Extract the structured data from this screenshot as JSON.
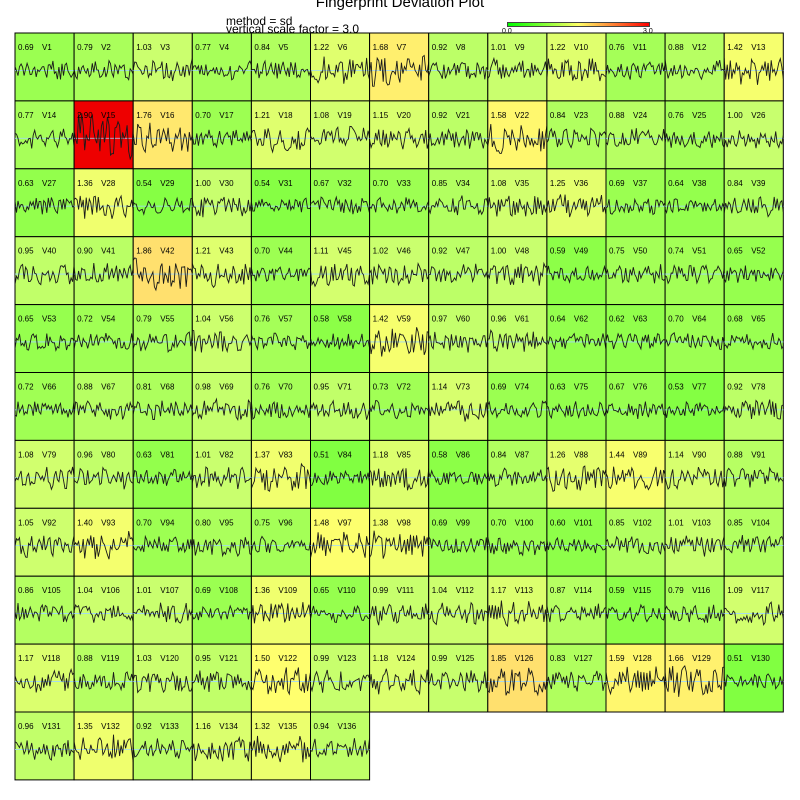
{
  "chart_data": {
    "type": "line",
    "title": "Fingerprint Deviation Plot",
    "method_label": "method = sd",
    "scale_label": "vertical scale factor = 3.0",
    "legend": {
      "min_label": "0.0",
      "max_label": "3.0",
      "range": [
        0,
        3
      ],
      "colors": [
        "#00ff00",
        "#ffff66",
        "#ff0000"
      ]
    },
    "columns": 13,
    "panels": [
      {
        "name": "V1",
        "value": 0.69
      },
      {
        "name": "V2",
        "value": 0.79
      },
      {
        "name": "V3",
        "value": 1.03
      },
      {
        "name": "V4",
        "value": 0.77
      },
      {
        "name": "V5",
        "value": 0.84
      },
      {
        "name": "V6",
        "value": 1.22
      },
      {
        "name": "V7",
        "value": 1.68
      },
      {
        "name": "V8",
        "value": 0.92
      },
      {
        "name": "V9",
        "value": 1.01
      },
      {
        "name": "V10",
        "value": 1.22
      },
      {
        "name": "V11",
        "value": 0.76
      },
      {
        "name": "V12",
        "value": 0.88
      },
      {
        "name": "V13",
        "value": 1.42
      },
      {
        "name": "V14",
        "value": 0.77
      },
      {
        "name": "V15",
        "value": 2.9
      },
      {
        "name": "V16",
        "value": 1.76
      },
      {
        "name": "V17",
        "value": 0.7
      },
      {
        "name": "V18",
        "value": 1.21
      },
      {
        "name": "V19",
        "value": 1.08
      },
      {
        "name": "V20",
        "value": 1.15
      },
      {
        "name": "V21",
        "value": 0.92
      },
      {
        "name": "V22",
        "value": 1.58
      },
      {
        "name": "V23",
        "value": 0.84
      },
      {
        "name": "V24",
        "value": 0.88
      },
      {
        "name": "V25",
        "value": 0.76
      },
      {
        "name": "V26",
        "value": 1.0
      },
      {
        "name": "V27",
        "value": 0.63
      },
      {
        "name": "V28",
        "value": 1.36
      },
      {
        "name": "V29",
        "value": 0.54
      },
      {
        "name": "V30",
        "value": 1.0
      },
      {
        "name": "V31",
        "value": 0.54
      },
      {
        "name": "V32",
        "value": 0.67
      },
      {
        "name": "V33",
        "value": 0.7
      },
      {
        "name": "V34",
        "value": 0.85
      },
      {
        "name": "V35",
        "value": 1.08
      },
      {
        "name": "V36",
        "value": 1.25
      },
      {
        "name": "V37",
        "value": 0.69
      },
      {
        "name": "V38",
        "value": 0.64
      },
      {
        "name": "V39",
        "value": 0.84
      },
      {
        "name": "V40",
        "value": 0.95
      },
      {
        "name": "V41",
        "value": 0.9
      },
      {
        "name": "V42",
        "value": 1.86
      },
      {
        "name": "V43",
        "value": 1.21
      },
      {
        "name": "V44",
        "value": 0.7
      },
      {
        "name": "V45",
        "value": 1.11
      },
      {
        "name": "V46",
        "value": 1.02
      },
      {
        "name": "V47",
        "value": 0.92
      },
      {
        "name": "V48",
        "value": 1.0
      },
      {
        "name": "V49",
        "value": 0.59
      },
      {
        "name": "V50",
        "value": 0.75
      },
      {
        "name": "V51",
        "value": 0.74
      },
      {
        "name": "V52",
        "value": 0.65
      },
      {
        "name": "V53",
        "value": 0.65
      },
      {
        "name": "V54",
        "value": 0.72
      },
      {
        "name": "V55",
        "value": 0.79
      },
      {
        "name": "V56",
        "value": 1.04
      },
      {
        "name": "V57",
        "value": 0.76
      },
      {
        "name": "V58",
        "value": 0.58
      },
      {
        "name": "V59",
        "value": 1.42
      },
      {
        "name": "V60",
        "value": 0.97
      },
      {
        "name": "V61",
        "value": 0.96
      },
      {
        "name": "V62",
        "value": 0.64
      },
      {
        "name": "V63",
        "value": 0.62
      },
      {
        "name": "V64",
        "value": 0.7
      },
      {
        "name": "V65",
        "value": 0.68
      },
      {
        "name": "V66",
        "value": 0.72
      },
      {
        "name": "V67",
        "value": 0.88
      },
      {
        "name": "V68",
        "value": 0.81
      },
      {
        "name": "V69",
        "value": 0.98
      },
      {
        "name": "V70",
        "value": 0.76
      },
      {
        "name": "V71",
        "value": 0.95
      },
      {
        "name": "V72",
        "value": 0.73
      },
      {
        "name": "V73",
        "value": 1.14
      },
      {
        "name": "V74",
        "value": 0.69
      },
      {
        "name": "V75",
        "value": 0.63
      },
      {
        "name": "V76",
        "value": 0.67
      },
      {
        "name": "V77",
        "value": 0.53
      },
      {
        "name": "V78",
        "value": 0.92
      },
      {
        "name": "V79",
        "value": 1.08
      },
      {
        "name": "V80",
        "value": 0.96
      },
      {
        "name": "V81",
        "value": 0.63
      },
      {
        "name": "V82",
        "value": 1.01
      },
      {
        "name": "V83",
        "value": 1.37
      },
      {
        "name": "V84",
        "value": 0.51
      },
      {
        "name": "V85",
        "value": 1.18
      },
      {
        "name": "V86",
        "value": 0.58
      },
      {
        "name": "V87",
        "value": 0.84
      },
      {
        "name": "V88",
        "value": 1.26
      },
      {
        "name": "V89",
        "value": 1.44
      },
      {
        "name": "V90",
        "value": 1.14
      },
      {
        "name": "V91",
        "value": 0.88
      },
      {
        "name": "V92",
        "value": 1.05
      },
      {
        "name": "V93",
        "value": 1.4
      },
      {
        "name": "V94",
        "value": 0.7
      },
      {
        "name": "V95",
        "value": 0.8
      },
      {
        "name": "V96",
        "value": 0.75
      },
      {
        "name": "V97",
        "value": 1.48
      },
      {
        "name": "V98",
        "value": 1.38
      },
      {
        "name": "V99",
        "value": 0.69
      },
      {
        "name": "V100",
        "value": 0.7
      },
      {
        "name": "V101",
        "value": 0.6
      },
      {
        "name": "V102",
        "value": 0.85
      },
      {
        "name": "V103",
        "value": 1.01
      },
      {
        "name": "V104",
        "value": 0.85
      },
      {
        "name": "V105",
        "value": 0.86
      },
      {
        "name": "V106",
        "value": 1.04
      },
      {
        "name": "V107",
        "value": 1.01
      },
      {
        "name": "V108",
        "value": 0.69
      },
      {
        "name": "V109",
        "value": 1.36
      },
      {
        "name": "V110",
        "value": 0.65
      },
      {
        "name": "V111",
        "value": 0.99
      },
      {
        "name": "V112",
        "value": 1.04
      },
      {
        "name": "V113",
        "value": 1.17
      },
      {
        "name": "V114",
        "value": 0.87
      },
      {
        "name": "V115",
        "value": 0.59
      },
      {
        "name": "V116",
        "value": 0.79
      },
      {
        "name": "V117",
        "value": 1.09
      },
      {
        "name": "V118",
        "value": 1.17
      },
      {
        "name": "V119",
        "value": 0.88
      },
      {
        "name": "V120",
        "value": 1.03
      },
      {
        "name": "V121",
        "value": 0.95
      },
      {
        "name": "V122",
        "value": 1.5
      },
      {
        "name": "V123",
        "value": 0.99
      },
      {
        "name": "V124",
        "value": 1.18
      },
      {
        "name": "V125",
        "value": 0.99
      },
      {
        "name": "V126",
        "value": 1.85
      },
      {
        "name": "V127",
        "value": 0.83
      },
      {
        "name": "V128",
        "value": 1.59
      },
      {
        "name": "V129",
        "value": 1.66
      },
      {
        "name": "V130",
        "value": 0.51
      },
      {
        "name": "V131",
        "value": 0.96
      },
      {
        "name": "V132",
        "value": 1.35
      },
      {
        "name": "V133",
        "value": 0.92
      },
      {
        "name": "V134",
        "value": 1.16
      },
      {
        "name": "V135",
        "value": 1.32
      },
      {
        "name": "V136",
        "value": 0.94
      }
    ]
  }
}
